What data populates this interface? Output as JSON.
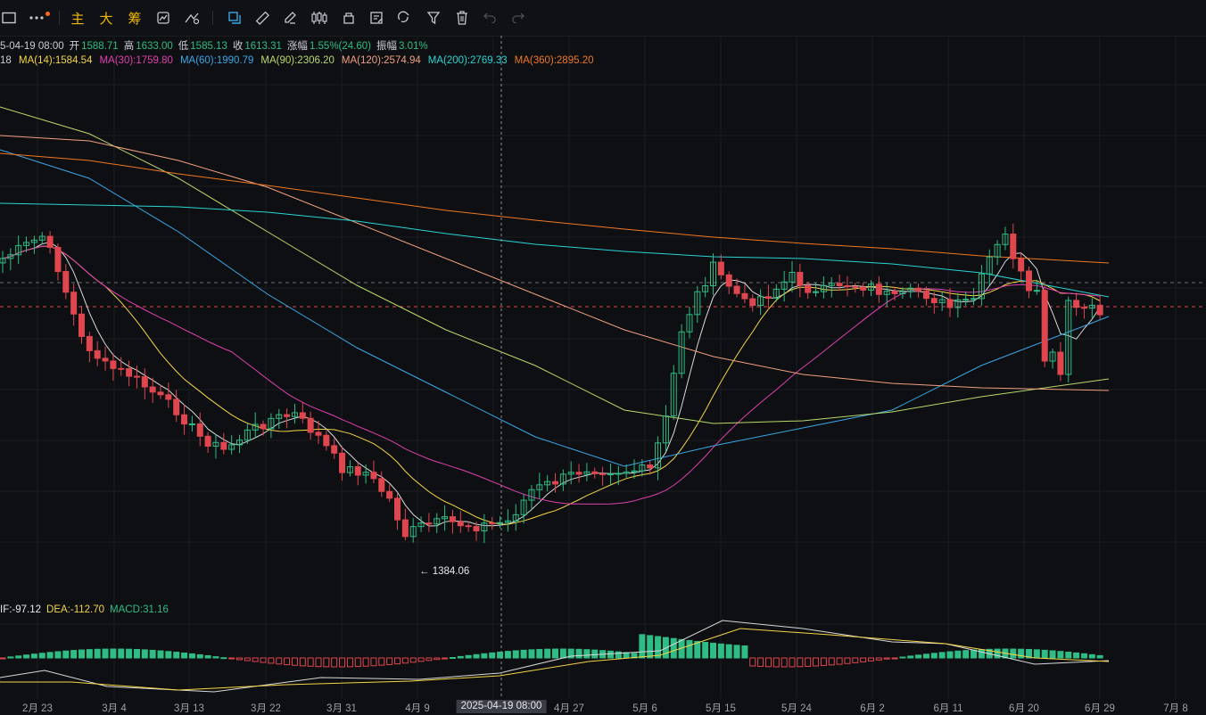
{
  "toolbar": {
    "main_label": "主",
    "big_label": "大",
    "chip_label": "筹"
  },
  "ohlc": {
    "date": "5-04-19 08:00",
    "open_label": "开",
    "open": "1588.71",
    "high_label": "高",
    "high": "1633.00",
    "low_label": "低",
    "low": "1585.13",
    "close_label": "收",
    "close": "1613.31",
    "change_label": "涨幅",
    "change": "1.55%(24.60)",
    "amp_label": "振幅",
    "amp": "3.01%"
  },
  "ma": {
    "prefix": "18",
    "items": [
      {
        "label": "MA(14):1584.54",
        "color": "#f5d547"
      },
      {
        "label": "MA(30):1759.80",
        "color": "#e040b0"
      },
      {
        "label": "MA(60):1990.79",
        "color": "#3ba7e6"
      },
      {
        "label": "MA(90):2306.20",
        "color": "#b8d96a"
      },
      {
        "label": "MA(120):2574.94",
        "color": "#f0a080"
      },
      {
        "label": "MA(200):2769.33",
        "color": "#2ad4d4"
      },
      {
        "label": "MA(360):2895.20",
        "color": "#f07820"
      }
    ]
  },
  "macd": {
    "dif": "IF:-97.12",
    "dea": "DEA:-112.70",
    "macd": "MACD:31.16"
  },
  "low_marker": "← 1384.06",
  "xaxis": {
    "labels": [
      "2月 23",
      "3月 4",
      "3月 13",
      "3月 22",
      "3月 31",
      "4月 9",
      "2025-04-19 08:00",
      "4月 27",
      "5月 6",
      "5月 15",
      "5月 24",
      "6月 2",
      "6月 11",
      "6月 20",
      "6月 29",
      "7月 8"
    ]
  },
  "colors": {
    "up": "#2ebd85",
    "down": "#e0464e",
    "background": "#0e0f12"
  },
  "chart_data": {
    "type": "candlestick",
    "low_point": 1384.06,
    "last_close": 1613.31
  }
}
